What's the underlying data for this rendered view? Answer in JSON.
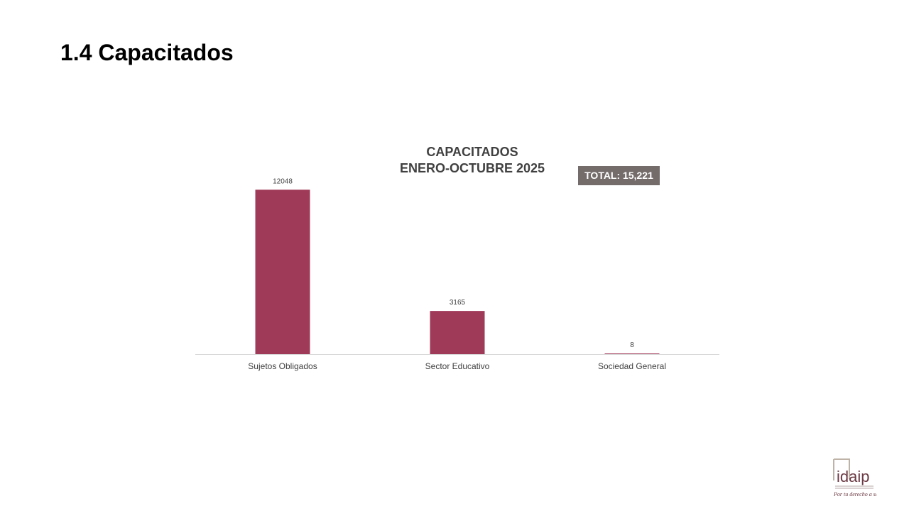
{
  "slide": {
    "title": "1.4 Capacitados"
  },
  "badge": {
    "total_label": "TOTAL: 15,221"
  },
  "logo": {
    "text": "idaip",
    "tagline": "Por tu derecho a saber"
  },
  "colors": {
    "bar": "#a03a59",
    "badge": "#746c6b",
    "axis": "#d9d9d9"
  },
  "chart_data": {
    "type": "bar",
    "title": "CAPACITADOS",
    "subtitle": "ENERO-OCTUBRE 2025",
    "categories": [
      "Sujetos Obligados",
      "Sector Educativo",
      "Sociedad General"
    ],
    "values": [
      12048,
      3165,
      8
    ],
    "data_labels": [
      "12048",
      "3165",
      "8"
    ],
    "xlabel": "",
    "ylabel": "",
    "ylim": [
      0,
      13000
    ],
    "grid": false
  }
}
